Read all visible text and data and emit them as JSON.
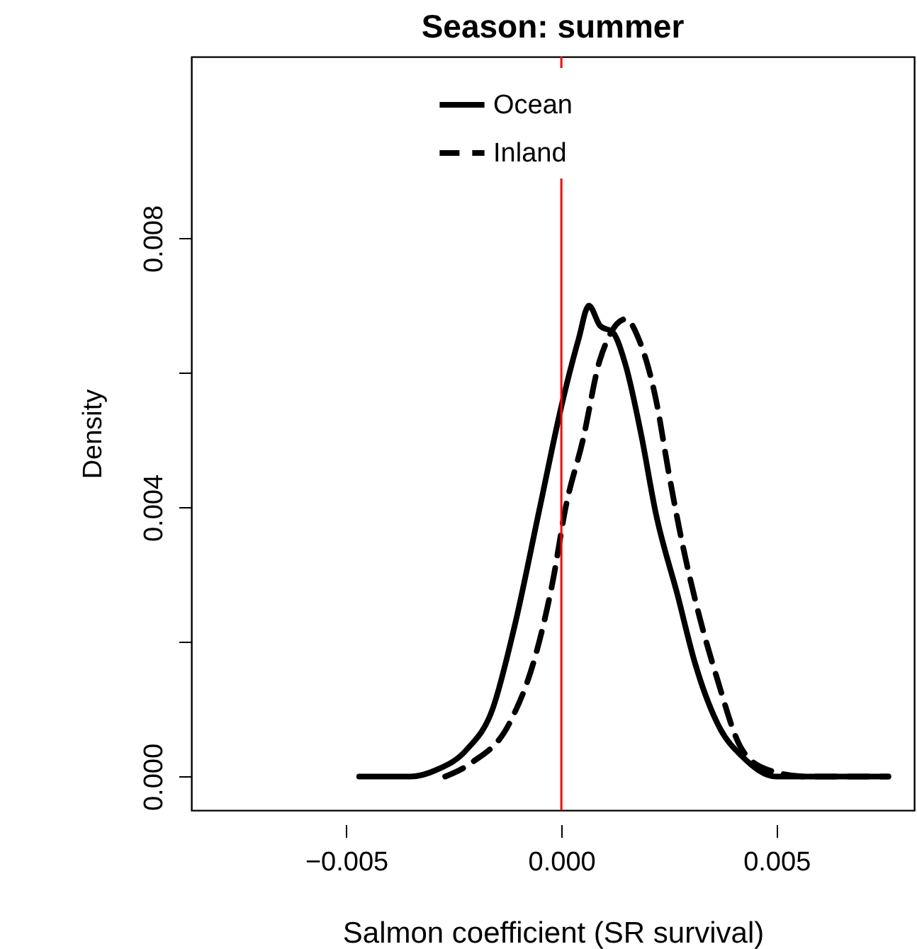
{
  "chart_data": {
    "type": "line",
    "title": "Season: summer",
    "xlabel": "Salmon coefficient (SR survival)",
    "ylabel": "Density",
    "xlim": [
      -0.0086,
      0.0082
    ],
    "ylim": [
      -0.0005,
      0.0107
    ],
    "xticks": [
      {
        "value": -0.005,
        "label": "−0.005"
      },
      {
        "value": 0,
        "label": "0.000"
      },
      {
        "value": 0.005,
        "label": "0.005"
      }
    ],
    "yticks": [
      {
        "value": 0,
        "label": "0.000"
      },
      {
        "value": 0.002,
        "label": null
      },
      {
        "value": 0.004,
        "label": "0.004"
      },
      {
        "value": 0.006,
        "label": null
      },
      {
        "value": 0.008,
        "label": "0.008"
      }
    ],
    "grid": false,
    "legend": "top",
    "marker": "none",
    "ref_lines": [
      {
        "axis": "x",
        "value": 0,
        "color": "#ff0000"
      }
    ],
    "series": [
      {
        "name": "Ocean",
        "color": "#000000",
        "line_style": "solid",
        "x": [
          -0.0047,
          -0.0035,
          -0.0029,
          -0.0022,
          -0.0016,
          -0.0011,
          -0.0005,
          0,
          0.0004,
          0.00064,
          0.0009,
          0.0012,
          0.0015,
          0.00185,
          0.0022,
          0.0027,
          0.0031,
          0.0037,
          0.0042,
          0.005,
          0.0061,
          0.0076
        ],
        "values": [
          0,
          0,
          0.0001,
          0.0004,
          0.001,
          0.0022,
          0.004,
          0.0055,
          0.0065,
          0.007,
          0.0067,
          0.0066,
          0.0061,
          0.0051,
          0.0039,
          0.0027,
          0.0017,
          0.0007,
          0.0003,
          0,
          0,
          0
        ]
      },
      {
        "name": "Inland",
        "color": "#000000",
        "line_style": "dashed",
        "x": [
          -0.0027,
          -0.0021,
          -0.0012,
          -0.0006,
          -0.0002,
          0.0001,
          0.0005,
          0.0009,
          0.0015,
          0.0018,
          0.0022,
          0.0025,
          0.0028,
          0.0032,
          0.0036,
          0.0042,
          0.0048,
          0.0057,
          0.0076
        ],
        "values": [
          0,
          0.0002,
          0.0008,
          0.0018,
          0.0029,
          0.004,
          0.005,
          0.0062,
          0.0068,
          0.0065,
          0.0056,
          0.0045,
          0.0035,
          0.0024,
          0.0015,
          0.0004,
          0.0001,
          0,
          0
        ]
      }
    ]
  }
}
